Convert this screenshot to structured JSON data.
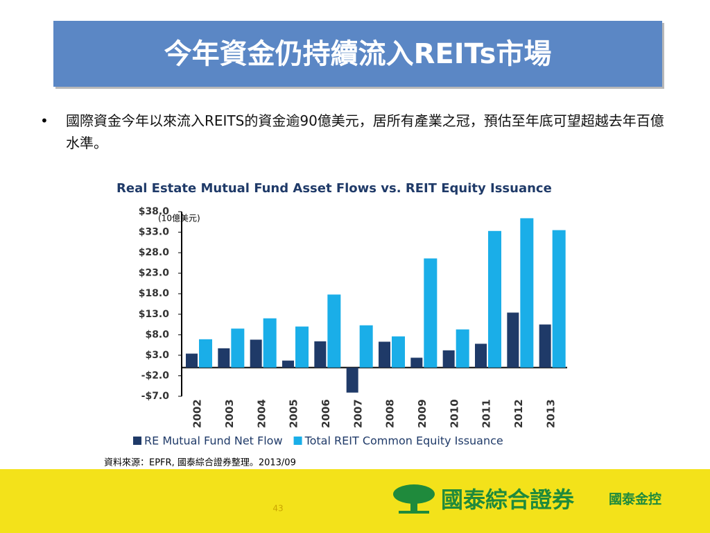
{
  "slide_title": "今年資金仍持續流入REITs市場",
  "bullet": "國際資金今年以來流入REITS的資金逾90億美元，居所有產業之冠，預估至年底可望超越去年百億水準。",
  "source": "資料來源：EPFR, 國泰綜合證券整理。2013/09",
  "page_number": "43",
  "logo_text": "國泰綜合證券",
  "logo_group": "國泰金控",
  "chart_data": {
    "type": "bar",
    "title": "Real Estate Mutual Fund Asset Flows vs. REIT Equity Issuance",
    "unit_label": "(10億美元)",
    "categories": [
      "2002",
      "2003",
      "2004",
      "2005",
      "2006",
      "2007",
      "2008",
      "2009",
      "2010",
      "2011",
      "2012",
      "2013"
    ],
    "series": [
      {
        "name": "RE Mutual Fund Net Flow",
        "color": "#1f3a68",
        "values": [
          3.4,
          4.7,
          6.8,
          1.7,
          6.4,
          -6.1,
          6.3,
          2.4,
          4.2,
          5.8,
          13.4,
          10.5
        ]
      },
      {
        "name": "Total REIT Common Equity Issuance",
        "color": "#1aaee8",
        "values": [
          6.9,
          9.5,
          12.0,
          10.0,
          17.8,
          10.3,
          7.6,
          26.6,
          9.3,
          33.3,
          36.4,
          33.5
        ]
      }
    ],
    "ylim": [
      -7,
      38
    ],
    "yticks": [
      {
        "value": -7,
        "label": "-$7.0"
      },
      {
        "value": -2,
        "label": "-$2.0"
      },
      {
        "value": 3,
        "label": "$3.0"
      },
      {
        "value": 8,
        "label": "$8.0"
      },
      {
        "value": 13,
        "label": "$13.0"
      },
      {
        "value": 18,
        "label": "$18.0"
      },
      {
        "value": 23,
        "label": "$23.0"
      },
      {
        "value": 28,
        "label": "$28.0"
      },
      {
        "value": 33,
        "label": "$33.0"
      },
      {
        "value": 38,
        "label": "$38.0"
      }
    ],
    "legend": "bottom"
  }
}
